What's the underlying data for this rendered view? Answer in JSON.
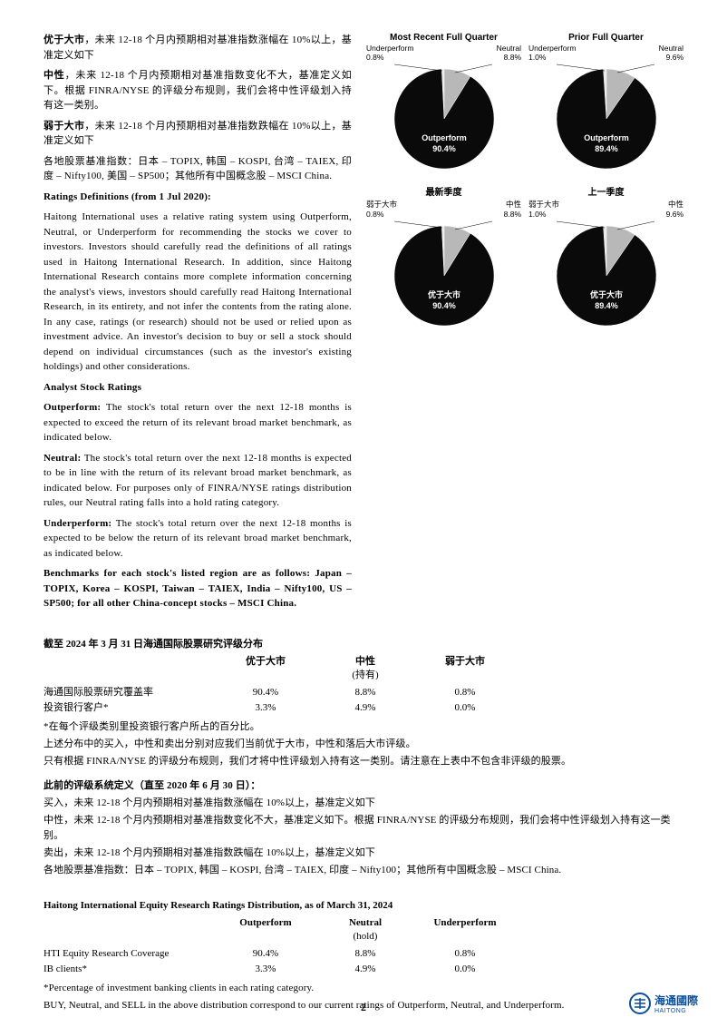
{
  "leftText": {
    "p1_b": "优于大市",
    "p1": "，未来 12-18 个月内预期相对基准指数涨幅在 10%以上，基准定义如下",
    "p2_b": "中性",
    "p2": "，未来 12-18 个月内预期相对基准指数变化不大，基准定义如下。根据 FINRA/NYSE 的评级分布规则，我们会将中性评级划入持有这一类别。",
    "p3_b": "弱于大市",
    "p3": "，未来 12-18 个月内预期相对基准指数跌幅在 10%以上，基准定义如下",
    "p4": "各地股票基准指数：日本 – TOPIX, 韩国 – KOSPI, 台湾 – TAIEX, 印度 – Nifty100, 美国 – SP500；其他所有中国概念股 – MSCI China.",
    "rd_title": "Ratings Definitions (from 1 Jul 2020):",
    "rd_body": "Haitong International uses a relative rating system using Outperform, Neutral, or Underperform for recommending the stocks we cover to investors. Investors should carefully read the definitions of all ratings used in Haitong International Research. In addition, since Haitong International Research contains more complete information concerning the analyst's views, investors should carefully read Haitong International Research, in its entirety, and not infer the contents from the rating alone. In any case, ratings (or research) should not be used or relied upon as investment advice. An investor's decision to buy or sell a stock should depend on individual circumstances (such as the investor's existing holdings) and other considerations.",
    "asr_title": "Analyst Stock Ratings",
    "out_b": "Outperform:",
    "out_t": " The stock's total return over the next 12-18 months is expected to exceed the return of its relevant broad market benchmark, as indicated below.",
    "neu_b": "Neutral:",
    "neu_t": " The stock's total return over the next 12-18 months is expected to be in line with the return of its relevant broad market benchmark, as indicated below. For purposes only of FINRA/NYSE ratings distribution rules, our Neutral rating falls into a hold rating category.",
    "und_b": "Underperform:",
    "und_t": " The stock's total return over the next 12-18 months is expected to be below the return of its relevant broad market benchmark, as indicated below.",
    "bench": "Benchmarks for each stock's listed region are as follows: Japan – TOPIX, Korea – KOSPI, Taiwan – TAIEX, India – Nifty100, US – SP500; for all other China-concept stocks – MSCI China."
  },
  "charts": {
    "c1": {
      "title": "Most Recent Full Quarter",
      "labels": {
        "under": "Underperform",
        "under_v": "0.8%",
        "neutral": "Neutral",
        "neutral_v": "8.8%",
        "out": "Outperform",
        "out_v": "90.4%"
      },
      "slices": {
        "out": 90.4,
        "neutral": 8.8,
        "under": 0.8
      },
      "colors": {
        "out": "#0a0a0a",
        "neutral": "#b8b8b8",
        "under": "#e8e8e8"
      }
    },
    "c2": {
      "title": "Prior Full Quarter",
      "labels": {
        "under": "Underperform",
        "under_v": "1.0%",
        "neutral": "Neutral",
        "neutral_v": "9.6%",
        "out": "Outperform",
        "out_v": "89.4%"
      },
      "slices": {
        "out": 89.4,
        "neutral": 9.6,
        "under": 1.0
      },
      "colors": {
        "out": "#0a0a0a",
        "neutral": "#b8b8b8",
        "under": "#e8e8e8"
      }
    },
    "c3": {
      "title": "最新季度",
      "labels": {
        "under": "弱于大市",
        "under_v": "0.8%",
        "neutral": "中性",
        "neutral_v": "8.8%",
        "out": "优于大市",
        "out_v": "90.4%"
      },
      "slices": {
        "out": 90.4,
        "neutral": 8.8,
        "under": 0.8
      },
      "colors": {
        "out": "#0a0a0a",
        "neutral": "#b8b8b8",
        "under": "#e8e8e8"
      }
    },
    "c4": {
      "title": "上一季度",
      "labels": {
        "under": "弱于大市",
        "under_v": "1.0%",
        "neutral": "中性",
        "neutral_v": "9.6%",
        "out": "优于大市",
        "out_v": "89.4%"
      },
      "slices": {
        "out": 89.4,
        "neutral": 9.6,
        "under": 1.0
      },
      "colors": {
        "out": "#0a0a0a",
        "neutral": "#b8b8b8",
        "under": "#e8e8e8"
      }
    }
  },
  "distCN": {
    "title": "截至 2024 年 3 月 31 日海通国际股票研究评级分布",
    "h1": "优于大市",
    "h2": "中性",
    "h3": "弱于大市",
    "hold": "(持有)",
    "r1_label": "海通国际股票研究覆盖率",
    "r1_1": "90.4%",
    "r1_2": "8.8%",
    "r1_3": "0.8%",
    "r2_label": "投资银行客户*",
    "r2_1": "3.3%",
    "r2_2": "4.9%",
    "r2_3": "0.0%",
    "note1": "*在每个评级类别里投资银行客户所占的百分比。",
    "note2": "上述分布中的买入，中性和卖出分别对应我们当前优于大市，中性和落后大市评级。",
    "note3": "只有根据 FINRA/NYSE 的评级分布规则，我们才将中性评级划入持有这一类别。请注意在上表中不包含非评级的股票。",
    "subhead": "此前的评级系统定义（直至 2020 年 6 月 30 日）：",
    "s1": "买入，未来 12-18 个月内预期相对基准指数涨幅在 10%以上，基准定义如下",
    "s2": "中性，未来 12-18 个月内预期相对基准指数变化不大，基准定义如下。根据 FINRA/NYSE 的评级分布规则，我们会将中性评级划入持有这一类别。",
    "s3": "卖出，未来 12-18 个月内预期相对基准指数跌幅在 10%以上，基准定义如下",
    "s4": "各地股票基准指数：日本 – TOPIX, 韩国 – KOSPI, 台湾 – TAIEX, 印度 – Nifty100；其他所有中国概念股 – MSCI China."
  },
  "distEN": {
    "title": "Haitong International Equity Research Ratings Distribution, as of March 31, 2024",
    "h1": "Outperform",
    "h2": "Neutral",
    "h3": "Underperform",
    "hold": "(hold)",
    "r1_label": "HTI Equity Research Coverage",
    "r1_1": "90.4%",
    "r1_2": "8.8%",
    "r1_3": "0.8%",
    "r2_label": "IB clients*",
    "r2_1": "3.3%",
    "r2_2": "4.9%",
    "r2_3": "0.0%",
    "note1": "*Percentage of investment banking clients in each rating category.",
    "note2": "BUY, Neutral, and SELL in the above distribution correspond to our current ratings of Outperform, Neutral, and Underperform."
  },
  "footer": {
    "page": "2",
    "logo_cn": "海通國際",
    "logo_en": "HAITONG"
  },
  "style": {
    "page_bg": "#ffffff",
    "text_color": "#000000",
    "logo_color": "#0a4f9c"
  }
}
